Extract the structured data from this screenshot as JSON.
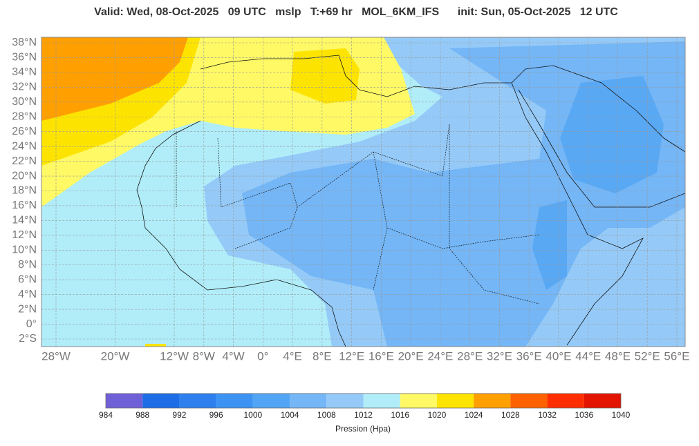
{
  "title": "Valid: Wed, 08-Oct-2025   09 UTC   mslp   T:+69 hr   MOL_6KM_IFS      init: Sun, 05-Oct-2025   12 UTC",
  "lat_ticks": [
    {
      "value": 38,
      "label": "38°N"
    },
    {
      "value": 36,
      "label": "36°N"
    },
    {
      "value": 34,
      "label": "34°N"
    },
    {
      "value": 32,
      "label": "32°N"
    },
    {
      "value": 30,
      "label": "30°N"
    },
    {
      "value": 28,
      "label": "28°N"
    },
    {
      "value": 26,
      "label": "26°N"
    },
    {
      "value": 24,
      "label": "24°N"
    },
    {
      "value": 22,
      "label": "22°N"
    },
    {
      "value": 20,
      "label": "20°N"
    },
    {
      "value": 18,
      "label": "18°N"
    },
    {
      "value": 16,
      "label": "16°N"
    },
    {
      "value": 14,
      "label": "14°N"
    },
    {
      "value": 12,
      "label": "12°N"
    },
    {
      "value": 10,
      "label": "10°N"
    },
    {
      "value": 8,
      "label": "8°N"
    },
    {
      "value": 6,
      "label": "6°N"
    },
    {
      "value": 4,
      "label": "4°N"
    },
    {
      "value": 2,
      "label": "2°N"
    },
    {
      "value": 0,
      "label": "0°"
    },
    {
      "value": -2,
      "label": "2°S"
    }
  ],
  "lon_ticks": [
    {
      "value": -28,
      "label": "28°W"
    },
    {
      "value": -20,
      "label": "20°W"
    },
    {
      "value": -12,
      "label": "12°W"
    },
    {
      "value": -8,
      "label": "8°W"
    },
    {
      "value": -4,
      "label": "4°W"
    },
    {
      "value": 0,
      "label": "0°"
    },
    {
      "value": 4,
      "label": "4°E"
    },
    {
      "value": 8,
      "label": "8°E"
    },
    {
      "value": 12,
      "label": "12°E"
    },
    {
      "value": 16,
      "label": "16°E"
    },
    {
      "value": 20,
      "label": "20°E"
    },
    {
      "value": 24,
      "label": "24°E"
    },
    {
      "value": 28,
      "label": "28°E"
    },
    {
      "value": 32,
      "label": "32°E"
    },
    {
      "value": 36,
      "label": "36°E"
    },
    {
      "value": 40,
      "label": "40°E"
    },
    {
      "value": 44,
      "label": "44°E"
    },
    {
      "value": 48,
      "label": "48°E"
    },
    {
      "value": 52,
      "label": "52°E"
    },
    {
      "value": 56,
      "label": "56°E"
    }
  ],
  "colorbar": {
    "levels": [
      984,
      988,
      992,
      996,
      1000,
      1004,
      1008,
      1012,
      1016,
      1020,
      1024,
      1028,
      1032,
      1036,
      1040
    ],
    "colors": [
      "#7060d8",
      "#1d6de6",
      "#2d80ee",
      "#3c93f2",
      "#52a5f4",
      "#74b6f6",
      "#95caf8",
      "#b0edf9",
      "#fef965",
      "#fde400",
      "#ff9f00",
      "#ff6100",
      "#ff2e00",
      "#e31400"
    ],
    "label": "Pression (Hpa)"
  }
}
